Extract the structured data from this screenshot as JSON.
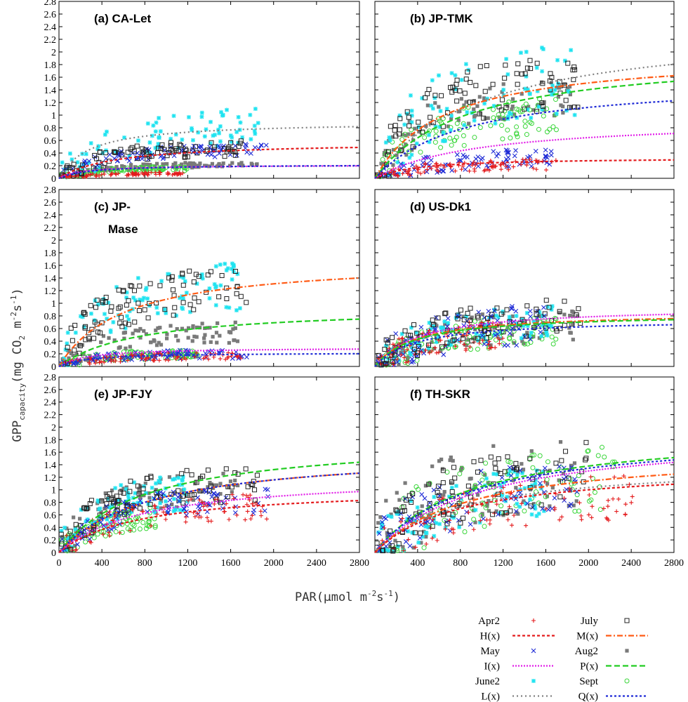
{
  "figure": {
    "ylabel": {
      "main": "GPP",
      "sub": "capacity",
      "unit": "(mg CO",
      "unit_sub": "2",
      "unit_mid": " m",
      "unit_sup1": "-2",
      "unit_mid2": "s",
      "unit_sup2": "-1",
      "unit_end": ")"
    },
    "xlabel": {
      "main": "PAR(",
      "mu": "µ",
      "unit": "mol m",
      "sup1": "-2",
      "mid": "s",
      "sup2": "-1",
      "end": ")"
    }
  },
  "legend": {
    "left": [
      {
        "label": "Apr2",
        "kind": "point",
        "marker": "plus",
        "color": "#e41a1c"
      },
      {
        "label": "H(x)",
        "kind": "line",
        "dash": "4,3",
        "color": "#e41a1c"
      },
      {
        "label": "May",
        "kind": "point",
        "marker": "cross",
        "color": "#1f2bd6"
      },
      {
        "label": "I(x)",
        "kind": "line",
        "dash": "2,2",
        "color": "#e21ee8"
      },
      {
        "label": "June2",
        "kind": "point",
        "marker": "star",
        "color": "#1fe3f0"
      },
      {
        "label": "L(x)",
        "kind": "line",
        "dash": "2,4",
        "color": "#808080"
      }
    ],
    "right": [
      {
        "label": "July",
        "kind": "point",
        "marker": "opensquare",
        "color": "#222222"
      },
      {
        "label": "M(x)",
        "kind": "line",
        "dash": "8,3,2,3",
        "color": "#ff5a14"
      },
      {
        "label": "Aug2",
        "kind": "point",
        "marker": "filledsquare",
        "color": "#7a7a7a"
      },
      {
        "label": "P(x)",
        "kind": "line",
        "dash": "8,4",
        "color": "#22cc22"
      },
      {
        "label": "Sept",
        "kind": "point",
        "marker": "opencircle",
        "color": "#3ad63a"
      },
      {
        "label": "Q(x)",
        "kind": "line",
        "dash": "3,3",
        "color": "#1f2bd6"
      }
    ]
  },
  "chart_data": [
    {
      "id": "a",
      "type": "scatter",
      "title": "(a) CA-Let",
      "xlim": [
        0,
        2800
      ],
      "ylim": [
        0,
        2.8
      ],
      "x_ticks": [],
      "y_ticks": [
        "0",
        "0.2",
        "0.4",
        "0.6",
        "0.8",
        "1",
        "1.2",
        "1.4",
        "1.6",
        "1.8",
        "2",
        "2.2",
        "2.4",
        "2.6",
        "2.8"
      ],
      "fits": {
        "H(x)": [
          0.58,
          520
        ],
        "I(x)": [
          0.21,
          200
        ],
        "L(x)": [
          0.9,
          280
        ],
        "Q(x)": [
          0.22,
          280
        ]
      },
      "scatter": {
        "Apr2": [
          1200,
          0.08,
          0.12,
          0.27
        ],
        "May": [
          1950,
          0.45,
          0.12,
          0.22
        ],
        "June2": [
          1900,
          0.85,
          0.17,
          0.35
        ],
        "July": [
          1750,
          0.48,
          0.12,
          0.28
        ],
        "Aug2": [
          1850,
          0.22,
          0.12,
          0.18
        ],
        "Sept": [
          1200,
          0.16,
          0.12,
          0.22
        ]
      }
    },
    {
      "id": "b",
      "type": "scatter",
      "title": "(b) JP-TMK",
      "xlim": [
        0,
        2800
      ],
      "ylim": [
        0,
        2.8
      ],
      "x_ticks": [],
      "y_ticks": [],
      "fits": {
        "H(x)": [
          0.33,
          380
        ],
        "I(x)": [
          0.95,
          950
        ],
        "L(x)": [
          2.45,
          1000
        ],
        "M(x)": [
          2.0,
          650
        ],
        "P(x)": [
          2.0,
          850
        ],
        "Q(x)": [
          1.6,
          850
        ]
      },
      "scatter": {
        "Apr2": [
          1700,
          0.22,
          0.12,
          0.4
        ],
        "May": [
          1700,
          0.35,
          0.2,
          0.4
        ],
        "June2": [
          1900,
          1.6,
          0.17,
          0.35
        ],
        "July": [
          1900,
          1.5,
          0.12,
          0.28
        ],
        "Aug2": [
          1900,
          1.3,
          0.12,
          0.22
        ],
        "Sept": [
          1700,
          1.0,
          0.17,
          0.3
        ]
      }
    },
    {
      "id": "c",
      "type": "scatter",
      "title": "(c) JP-",
      "title2": "Mase",
      "xlim": [
        0,
        2800
      ],
      "ylim": [
        0,
        2.8
      ],
      "x_ticks": [],
      "y_ticks": [
        "0",
        "0.2",
        "0.4",
        "0.6",
        "0.8",
        "1",
        "1.2",
        "1.4",
        "1.6",
        "1.8",
        "2",
        "2.2",
        "2.4",
        "2.6",
        "2.8"
      ],
      "fits": {
        "M(x)": [
          1.7,
          600
        ],
        "P(x)": [
          0.95,
          750
        ],
        "I(x)": [
          0.3,
          260
        ],
        "Q(x)": [
          0.22,
          260
        ]
      },
      "scatter": {
        "Apr2": [
          1700,
          0.17,
          0.12,
          0.35
        ],
        "May": [
          1750,
          0.2,
          0.12,
          0.35
        ],
        "June2": [
          1700,
          1.3,
          0.15,
          0.3
        ],
        "July": [
          1750,
          1.25,
          0.12,
          0.28
        ],
        "Aug2": [
          1700,
          0.55,
          0.15,
          0.3
        ],
        "Sept": [
          1300,
          0.2,
          0.12,
          0.35
        ]
      }
    },
    {
      "id": "d",
      "type": "scatter",
      "title": "(d) US-Dk1",
      "xlim": [
        0,
        2800
      ],
      "ylim": [
        0,
        2.8
      ],
      "x_ticks": [],
      "y_ticks": [],
      "fits": {
        "I(x)": [
          0.95,
          420
        ],
        "M(x)": [
          0.86,
          380
        ],
        "P(x)": [
          0.84,
          380
        ],
        "Q(x)": [
          0.75,
          380
        ]
      },
      "scatter": {
        "Apr2": [
          1200,
          0.55,
          0.2,
          0.4
        ],
        "May": [
          1600,
          0.7,
          0.2,
          0.45
        ],
        "June2": [
          1700,
          0.75,
          0.17,
          0.35
        ],
        "July": [
          1950,
          0.8,
          0.15,
          0.35
        ],
        "Aug2": [
          1900,
          0.65,
          0.15,
          0.4
        ],
        "Sept": [
          1700,
          0.6,
          0.2,
          0.4
        ]
      }
    },
    {
      "id": "e",
      "type": "scatter",
      "title": "(e) JP-FJY",
      "xlim": [
        0,
        2800
      ],
      "ylim": [
        0,
        2.8
      ],
      "x_ticks": [
        "0",
        "400",
        "800",
        "1200",
        "1600",
        "2000",
        "2400",
        "2800"
      ],
      "y_ticks": [
        "0",
        "0.2",
        "0.4",
        "0.6",
        "0.8",
        "1",
        "1.2",
        "1.4",
        "1.6",
        "1.8",
        "2",
        "2.2",
        "2.4",
        "2.6",
        "2.8"
      ],
      "fits": {
        "P(x)": [
          1.85,
          800
        ],
        "M(x)": [
          1.65,
          850
        ],
        "Q(x)": [
          1.65,
          850
        ],
        "I(x)": [
          1.25,
          800
        ],
        "H(x)": [
          1.05,
          750
        ]
      },
      "scatter": {
        "Apr2": [
          1950,
          0.75,
          0.15,
          0.28
        ],
        "May": [
          1950,
          0.85,
          0.12,
          0.25
        ],
        "June2": [
          1200,
          1.0,
          0.15,
          0.3
        ],
        "July": [
          1850,
          1.1,
          0.12,
          0.25
        ],
        "Aug2": [
          1700,
          1.05,
          0.12,
          0.25
        ],
        "Sept": [
          900,
          0.6,
          0.15,
          0.3
        ]
      }
    },
    {
      "id": "f",
      "type": "scatter",
      "title": "(f) TH-SKR",
      "xlim": [
        0,
        2800
      ],
      "ylim": [
        0,
        2.8
      ],
      "x_ticks": [
        "400",
        "800",
        "1200",
        "1600",
        "2000",
        "2400",
        "2800"
      ],
      "y_ticks": [],
      "fits": {
        "P(x)": [
          2.0,
          900
        ],
        "Q(x)": [
          1.95,
          900
        ],
        "I(x)": [
          1.95,
          1000
        ],
        "M(x)": [
          1.65,
          900
        ],
        "L(x)": [
          1.45,
          800
        ],
        "H(x)": [
          1.4,
          800
        ]
      },
      "scatter": {
        "Apr2": [
          2450,
          0.9,
          0.2,
          0.4
        ],
        "May": [
          1900,
          1.1,
          0.2,
          0.4
        ],
        "June2": [
          1600,
          1.0,
          0.2,
          0.4
        ],
        "July": [
          2000,
          1.3,
          0.2,
          0.4
        ],
        "Aug2": [
          1900,
          1.35,
          0.2,
          0.45
        ],
        "Sept": [
          2300,
          1.2,
          0.2,
          0.45
        ]
      }
    }
  ]
}
